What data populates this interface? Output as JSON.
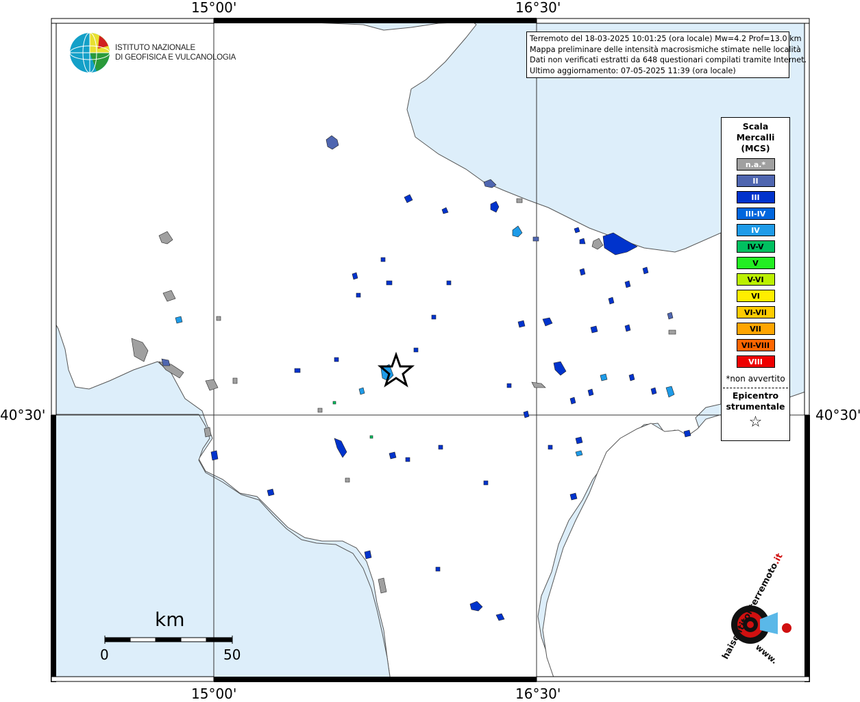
{
  "map": {
    "lon_labels": [
      "15°00'",
      "16°30'"
    ],
    "lat_labels": [
      "40°30'"
    ],
    "colors": {
      "sea": "#ddeefa",
      "land": "#ffffff",
      "coast": "#555555",
      "grid": "#333333"
    }
  },
  "logo": {
    "line1": "ISTITUTO NAZIONALE",
    "line2": "DI GEOFISICA E VULCANOLOGIA",
    "icon": "ingv-globe-icon"
  },
  "info": {
    "line1": "Terremoto del 18-03-2025 10:01:25 (ora locale) Mw=4.2 Prof=13.0 km",
    "line2": "Mappa preliminare delle intensità macrosismiche stimate nelle località",
    "line3": "Dati non verificati estratti da 648 questionari compilati tramite Internet.",
    "line4": "Ultimo aggiornamento: 07-05-2025 11:39 (ora locale)"
  },
  "legend": {
    "title_line1": "Scala",
    "title_line2": "Mercalli",
    "title_line3": "(MCS)",
    "items": [
      {
        "label": "n.a.*",
        "color": "#a0a0a0",
        "text_color": "#ffffff"
      },
      {
        "label": "II",
        "color": "#4f66b0",
        "text_color": "#ffffff"
      },
      {
        "label": "III",
        "color": "#0033cc",
        "text_color": "#ffffff"
      },
      {
        "label": "III-IV",
        "color": "#0066dd",
        "text_color": "#ffffff"
      },
      {
        "label": "IV",
        "color": "#1e9be8",
        "text_color": "#ffffff"
      },
      {
        "label": "IV-V",
        "color": "#00c060",
        "text_color": "#000000"
      },
      {
        "label": "V",
        "color": "#22ee22",
        "text_color": "#000000"
      },
      {
        "label": "V-VI",
        "color": "#bbf000",
        "text_color": "#000000"
      },
      {
        "label": "VI",
        "color": "#ffee00",
        "text_color": "#000000"
      },
      {
        "label": "VI-VII",
        "color": "#ffcc00",
        "text_color": "#000000"
      },
      {
        "label": "VII",
        "color": "#ffa500",
        "text_color": "#000000"
      },
      {
        "label": "VII-VIII",
        "color": "#ff6600",
        "text_color": "#000000"
      },
      {
        "label": "VIII",
        "color": "#ee0000",
        "text_color": "#ffffff"
      }
    ],
    "note": "*non avvertito",
    "epicenter_line1": "Epicentro",
    "epicenter_line2": "strumentale",
    "epicenter_symbol": "☆"
  },
  "scalebar": {
    "unit": "km",
    "start": "0",
    "end": "50"
  },
  "badge": {
    "text_main": "haisentitoilterremoto",
    "text_tld": ".it",
    "text_www": "www."
  }
}
